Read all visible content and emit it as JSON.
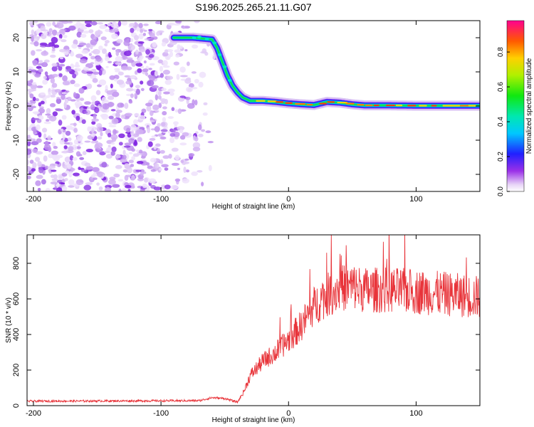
{
  "title": "S196.2025.265.21.11.G07",
  "chart_data": [
    {
      "type": "heatmap",
      "panel": "spectrogram",
      "xlabel": "Height of straight line (km)",
      "ylabel": "Frequency (Hz)",
      "xlim": [
        -205,
        150
      ],
      "ylim": [
        -25,
        25
      ],
      "xticks": [
        -200,
        -100,
        0,
        100
      ],
      "yticks": [
        20,
        10,
        0,
        -10,
        -20
      ],
      "colorbar": {
        "label": "Normalized spectral amplitude",
        "range": [
          0.0,
          0.98
        ],
        "ticks": [
          "0.0",
          "0.2",
          "0.4",
          "0.6",
          "0.8"
        ]
      },
      "ridge": {
        "description": "dominant frequency ridge vs height",
        "x": [
          -90,
          -75,
          -60,
          -56,
          -52,
          -48,
          -44,
          -40,
          -36,
          -30,
          -20,
          -10,
          0,
          10,
          20,
          30,
          40,
          50,
          60,
          80,
          100,
          120,
          150
        ],
        "y": [
          20,
          20,
          19.5,
          17,
          13,
          9,
          6,
          4,
          2.5,
          1.5,
          1.5,
          1.2,
          0.8,
          0.5,
          0.3,
          1.2,
          1.0,
          0.5,
          0.2,
          0.2,
          0.1,
          0.1,
          0.1
        ]
      },
      "noise_region_x": [
        -205,
        -55
      ]
    },
    {
      "type": "line",
      "panel": "snr",
      "xlabel": "Height of straight line (km)",
      "ylabel": "SNR (10 * v/v)",
      "xlim": [
        -205,
        150
      ],
      "ylim": [
        0,
        960
      ],
      "xticks": [
        -200,
        -100,
        0,
        100
      ],
      "yticks": [
        0,
        200,
        400,
        600,
        800
      ],
      "color": "#e8343a",
      "envelope": {
        "x": [
          -205,
          -70,
          -60,
          -50,
          -40,
          -35,
          -30,
          -20,
          -10,
          0,
          10,
          20,
          30,
          40,
          50,
          60,
          80,
          100,
          120,
          150
        ],
        "y": [
          25,
          28,
          45,
          40,
          20,
          80,
          170,
          250,
          300,
          370,
          450,
          560,
          620,
          660,
          670,
          650,
          650,
          640,
          630,
          610
        ]
      }
    }
  ]
}
